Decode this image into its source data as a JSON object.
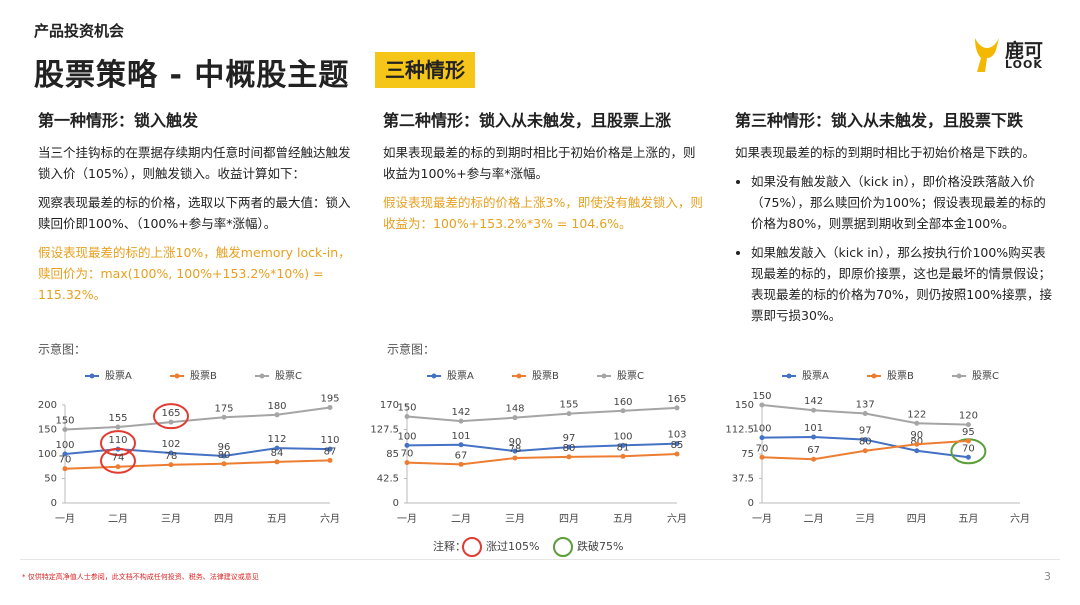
{
  "header": {
    "section": "产品投资机会",
    "title": "股票策略 - 中概股主题",
    "tag": "三种情形"
  },
  "logo": {
    "name": "鹿可",
    "sub": "LOOK"
  },
  "columns": [
    {
      "heading": "第一种情形：锁入触发",
      "paragraphs": [
        "当三个挂钩标的在票据存续期内任意时间都曾经触达触发锁入价（105%），则触发锁入。收益计算如下：",
        "观察表现最差的标的价格，选取以下两者的最大值：锁入赎回价即100%、（100%+参与率*涨幅）。"
      ],
      "highlight": "假设表现最差的标的上涨10%，触发memory lock-in，赎回价为：max(100%, 100%+153.2%*10%) = 115.32%。"
    },
    {
      "heading": "第二种情形：锁入从未触发，且股票上涨",
      "paragraphs": [
        "如果表现最差的标的到期时相比于初始价格是上涨的，则收益为100%+参与率*涨幅。"
      ],
      "highlight": "假设表现最差的标的价格上涨3%，即使没有触发锁入，则收益为：100%+153.2%*3% = 104.6%。"
    },
    {
      "heading": "第三种情形：锁入从未触发，且股票下跌",
      "paragraphs": [
        "如果表现最差的标的到期时相比于初始价格是下跌的。"
      ],
      "bullets": [
        "如果没有触发敲入（kick in），即价格没跌落敲入价（75%），那么赎回价为100%；假设表现最差的标的价格为80%，则票据到期收到全部本金100%。",
        "如果触发敲入（kick in），那么按执行价100%购买表现最差的标的，即原价接票，这也是最坏的情景假设；表现最差的标的价格为70%，则仍按照100%接票，接票即亏损30%。"
      ]
    }
  ],
  "chart_data": [
    {
      "type": "line",
      "caption": "示意图：",
      "categories": [
        "一月",
        "二月",
        "三月",
        "四月",
        "五月",
        "六月"
      ],
      "ylim": [
        0,
        200
      ],
      "yticks": [
        0,
        50,
        100,
        150,
        200
      ],
      "series": [
        {
          "name": "股票A",
          "color": "#4472c4",
          "values": [
            100,
            110,
            102,
            96,
            112,
            110
          ],
          "highlight": {
            "index": 1,
            "color": "#e03c31"
          }
        },
        {
          "name": "股票B",
          "color": "#ed7d31",
          "values": [
            70,
            74,
            78,
            80,
            84,
            87
          ],
          "highlight": {
            "index": 1,
            "color": "#e03c31"
          }
        },
        {
          "name": "股票C",
          "color": "#a5a5a5",
          "values": [
            150,
            155,
            165,
            175,
            180,
            195
          ],
          "highlight": {
            "index": 2,
            "color": "#e03c31"
          }
        }
      ]
    },
    {
      "type": "line",
      "caption": "示意图：",
      "categories": [
        "一月",
        "二月",
        "三月",
        "四月",
        "五月",
        "六月"
      ],
      "ylim": [
        0,
        170
      ],
      "yticks": [
        0,
        42.5,
        85,
        127.5,
        170
      ],
      "series": [
        {
          "name": "股票A",
          "color": "#4472c4",
          "values": [
            100,
            101,
            90,
            97,
            100,
            103
          ]
        },
        {
          "name": "股票B",
          "color": "#ed7d31",
          "values": [
            70,
            67,
            78,
            80,
            81,
            85
          ]
        },
        {
          "name": "股票C",
          "color": "#a5a5a5",
          "values": [
            150,
            142,
            148,
            155,
            160,
            165
          ]
        }
      ]
    },
    {
      "type": "line",
      "categories": [
        "一月",
        "二月",
        "三月",
        "四月",
        "五月",
        "六月"
      ],
      "ylim": [
        0,
        150
      ],
      "yticks": [
        0,
        37.5,
        75,
        112.5,
        150
      ],
      "series": [
        {
          "name": "股票A",
          "color": "#4472c4",
          "values": [
            100,
            101,
            97,
            80,
            70,
            null
          ],
          "highlight": {
            "index": 4,
            "color": "#5a9e3a"
          }
        },
        {
          "name": "股票B",
          "color": "#ed7d31",
          "values": [
            70,
            67,
            80,
            90,
            95,
            null
          ]
        },
        {
          "name": "股票C",
          "color": "#a5a5a5",
          "values": [
            150,
            142,
            137,
            122,
            120,
            null
          ]
        }
      ]
    }
  ],
  "note": {
    "label": "注释：",
    "items": [
      {
        "text": "涨过105%",
        "color": "#e03c31"
      },
      {
        "text": "跌破75%",
        "color": "#5a9e3a"
      }
    ]
  },
  "footer": {
    "disclaimer": "* 仅供特定高净值人士参阅，此文档不构成任何投资、税务、法律建议或意见",
    "page": 3
  }
}
